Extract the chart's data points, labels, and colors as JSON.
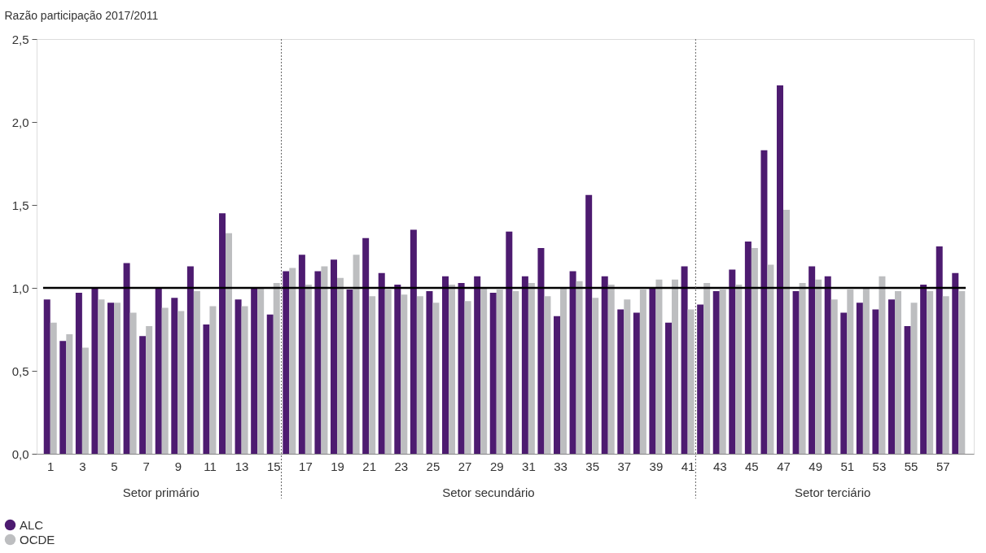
{
  "chart_data": {
    "type": "bar",
    "ylabel": "Razão participação 2017/2011",
    "x": [
      1,
      2,
      3,
      4,
      5,
      6,
      7,
      8,
      9,
      10,
      11,
      12,
      13,
      14,
      15,
      16,
      17,
      18,
      19,
      20,
      21,
      22,
      23,
      24,
      25,
      26,
      27,
      28,
      29,
      30,
      31,
      32,
      33,
      34,
      35,
      36,
      37,
      38,
      39,
      40,
      41,
      42,
      43,
      44,
      45,
      46,
      47,
      48,
      49,
      50,
      51,
      52,
      53,
      54,
      55,
      56,
      57,
      58
    ],
    "xlim": [
      0.4,
      58.7
    ],
    "xticks": [
      1,
      3,
      5,
      7,
      9,
      11,
      13,
      15,
      17,
      19,
      21,
      23,
      25,
      27,
      29,
      31,
      33,
      35,
      37,
      39,
      41,
      43,
      45,
      47,
      49,
      51,
      53,
      55,
      57
    ],
    "ylim": [
      0,
      2.5
    ],
    "yticks": [
      {
        "value": 0,
        "label": "0,0"
      },
      {
        "value": 0.5,
        "label": "0,5"
      },
      {
        "value": 1,
        "label": "1,0"
      },
      {
        "value": 1.5,
        "label": "1,5"
      },
      {
        "value": 2,
        "label": "2,0"
      },
      {
        "value": 2.5,
        "label": "2,5"
      }
    ],
    "series": [
      {
        "name": "ALC",
        "color": "#4d1b70",
        "values": [
          0.93,
          0.68,
          0.97,
          1.0,
          0.91,
          1.15,
          0.71,
          1.0,
          0.94,
          1.13,
          0.78,
          1.45,
          0.93,
          1.0,
          0.84,
          1.1,
          1.2,
          1.1,
          1.17,
          0.99,
          1.3,
          1.09,
          1.02,
          1.35,
          0.98,
          1.07,
          1.03,
          1.07,
          0.97,
          1.34,
          1.07,
          1.24,
          0.83,
          1.1,
          1.56,
          1.07,
          0.87,
          0.85,
          1.0,
          0.79,
          1.13,
          0.9,
          0.98,
          1.11,
          1.28,
          1.83,
          2.22,
          0.98,
          1.13,
          1.07,
          0.85,
          0.91,
          0.87,
          0.93,
          0.77,
          1.02,
          1.25,
          1.09
        ]
      },
      {
        "name": "OCDE",
        "color": "#bdbec0",
        "values": [
          0.79,
          0.72,
          0.64,
          0.93,
          0.91,
          0.85,
          0.77,
          0.88,
          0.86,
          0.98,
          0.89,
          1.33,
          0.89,
          1.0,
          1.03,
          1.12,
          1.02,
          1.13,
          1.06,
          1.2,
          0.95,
          0.99,
          0.96,
          0.95,
          0.91,
          1.02,
          0.92,
          1.0,
          0.99,
          0.98,
          1.03,
          0.95,
          1.0,
          1.04,
          0.94,
          1.02,
          0.93,
          0.99,
          1.05,
          1.05,
          0.87,
          1.03,
          0.99,
          1.02,
          1.24,
          1.14,
          1.47,
          1.03,
          1.05,
          0.93,
          0.99,
          1.0,
          1.07,
          0.98,
          0.91,
          0.98,
          0.95,
          0.98
        ]
      }
    ],
    "ref_lines": [
      {
        "axis": "y",
        "value": 1,
        "color": "#000000",
        "line_style": "solid"
      },
      {
        "axis": "x",
        "value": 15.5,
        "color": "#666666",
        "line_style": "dotted"
      },
      {
        "axis": "x",
        "value": 41.5,
        "color": "#666666",
        "line_style": "dotted"
      }
    ],
    "annotations": [
      "Setor primário",
      "Setor secundário",
      "Setor terciário"
    ],
    "grid": false,
    "legend": "bottom left"
  }
}
